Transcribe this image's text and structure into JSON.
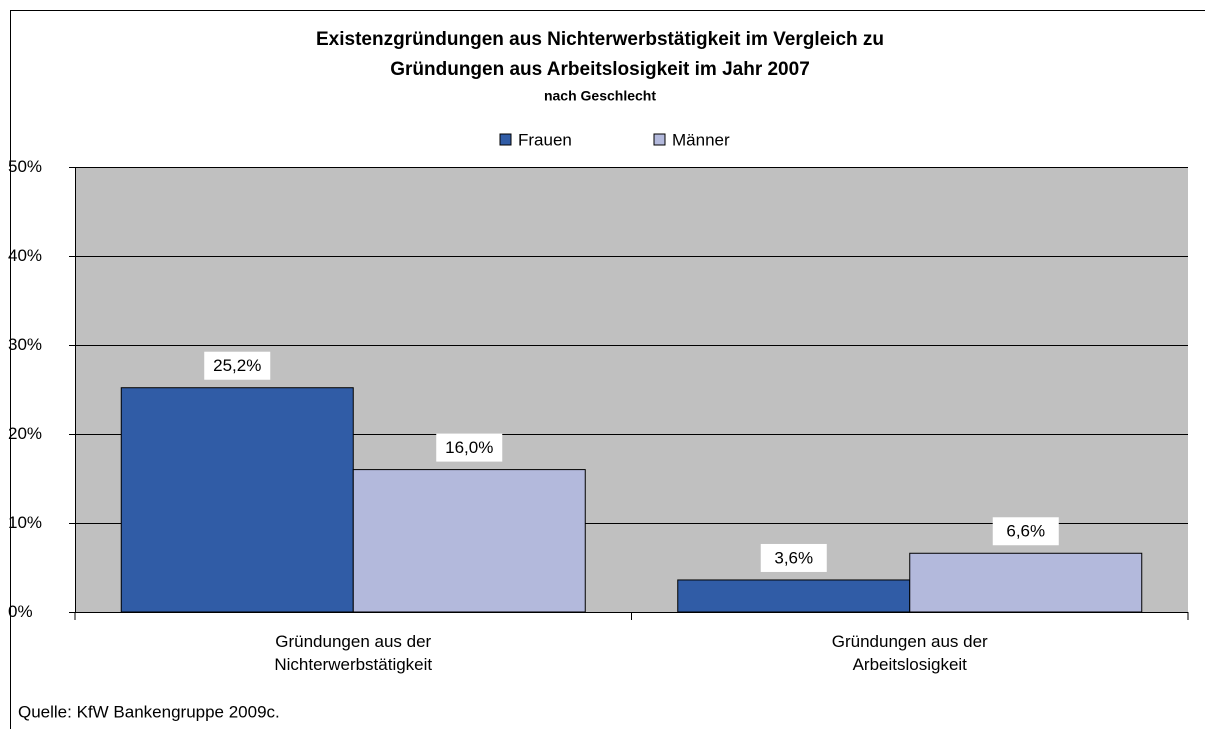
{
  "chart_data": {
    "type": "bar",
    "title": [
      "Existenzgründungen aus Nichterwerbstätigkeit im Vergleich zu",
      "Gründungen aus Arbeitslosigkeit im Jahr 2007"
    ],
    "subtitle": "nach Geschlecht",
    "categories": [
      "Gründungen aus der Nichterwerbstätigkeit",
      "Gründungen aus der Arbeitslosigkeit"
    ],
    "series": [
      {
        "name": "Frauen",
        "color": "#305ca6",
        "values": [
          25.2,
          3.6
        ],
        "value_labels": [
          "25,2%",
          "3,6%"
        ]
      },
      {
        "name": "Männer",
        "color": "#b3b9dc",
        "values": [
          16.0,
          6.6
        ],
        "value_labels": [
          "16,0%",
          "6,6%"
        ]
      }
    ],
    "ylim": [
      0,
      50
    ],
    "yticks": [
      {
        "value": 0,
        "label": "0%"
      },
      {
        "value": 10,
        "label": "10%"
      },
      {
        "value": 20,
        "label": "20%"
      },
      {
        "value": 30,
        "label": "30%"
      },
      {
        "value": 40,
        "label": "40%"
      },
      {
        "value": 50,
        "label": "50%"
      }
    ],
    "grid": true,
    "legend": "top",
    "source": "Quelle: KfW Bankengruppe 2009c."
  }
}
